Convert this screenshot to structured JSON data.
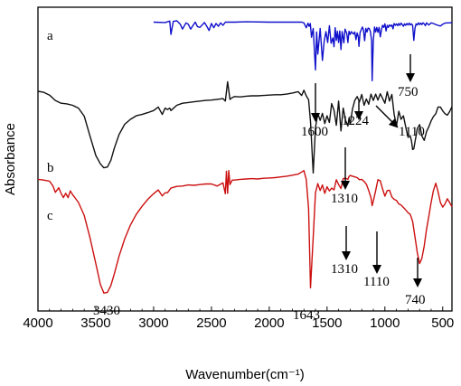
{
  "chart_data": {
    "type": "line",
    "xlabel": "Wavenumber(cm⁻¹)",
    "ylabel": "Absorbance",
    "xlim": [
      4000,
      420
    ],
    "x_ticks": [
      4000,
      3500,
      3000,
      2500,
      2000,
      1500,
      1000,
      500
    ],
    "grid": false,
    "series": [
      {
        "name": "a",
        "color": "#1010cc",
        "x": [
          3000,
          2900,
          2860,
          2850,
          2830,
          2800,
          2770,
          2750,
          2720,
          2700,
          2680,
          2660,
          2640,
          2620,
          2600,
          2560,
          2540,
          2520,
          2500,
          2480,
          2460,
          2440,
          2420,
          2400,
          2380,
          2300,
          2200,
          2000,
          1800,
          1720,
          1700,
          1680,
          1665,
          1655,
          1645,
          1635,
          1620,
          1600,
          1590,
          1580,
          1560,
          1540,
          1525,
          1510,
          1495,
          1480,
          1465,
          1450,
          1440,
          1430,
          1420,
          1410,
          1400,
          1390,
          1380,
          1370,
          1355,
          1345,
          1330,
          1320,
          1310,
          1300,
          1290,
          1280,
          1270,
          1260,
          1250,
          1240,
          1230,
          1224,
          1215,
          1205,
          1195,
          1185,
          1175,
          1165,
          1155,
          1145,
          1135,
          1125,
          1115,
          1110,
          1100,
          1090,
          1080,
          1070,
          1060,
          1050,
          1040,
          1030,
          1020,
          1010,
          1000,
          990,
          980,
          970,
          960,
          950,
          940,
          930,
          920,
          910,
          900,
          890,
          880,
          870,
          860,
          850,
          840,
          830,
          820,
          810,
          800,
          790,
          780,
          770,
          760,
          750,
          740,
          730,
          720,
          710,
          700,
          690,
          680,
          670,
          660,
          650,
          640,
          630,
          620,
          600,
          580,
          560,
          540,
          520,
          500,
          480,
          460,
          440,
          420
        ],
        "y": [
          97.3,
          97.2,
          97.6,
          93.8,
          97.5,
          97.7,
          96.7,
          95.3,
          97.1,
          96.7,
          95.3,
          96.3,
          97.3,
          96.0,
          95.8,
          97.2,
          96.1,
          94.9,
          96.9,
          95.7,
          96.9,
          96.1,
          97.1,
          96.4,
          97.3,
          97.3,
          97.4,
          97.3,
          97.3,
          97.3,
          97.1,
          95.7,
          97.0,
          96.1,
          96.9,
          93.0,
          95.5,
          83.7,
          94.5,
          88.2,
          95.5,
          86.4,
          91.8,
          94.6,
          91.5,
          96.3,
          91.3,
          92.8,
          90.3,
          95.7,
          92.1,
          94.7,
          91.5,
          94.8,
          89.5,
          94.6,
          91.4,
          95.3,
          94.1,
          91.5,
          94.7,
          93.8,
          94.6,
          94.2,
          93.9,
          94.5,
          92.3,
          94.2,
          93.1,
          90.4,
          94.3,
          95.1,
          95.9,
          95.1,
          92.0,
          95.5,
          94.5,
          95.6,
          95.5,
          94.6,
          92.0,
          80.6,
          92.1,
          95.9,
          94.5,
          95.8,
          94.4,
          95.8,
          93.1,
          95.1,
          96.4,
          95.8,
          96.8,
          94.8,
          96.4,
          95.8,
          96.5,
          96.1,
          96.5,
          95.4,
          96.9,
          96.4,
          96.8,
          96.3,
          96.9,
          96.4,
          97.0,
          96.6,
          96.1,
          96.8,
          96.4,
          96.9,
          96.5,
          97.0,
          96.5,
          96.8,
          96.4,
          92.1,
          95.6,
          96.8,
          96.5,
          97.1,
          96.6,
          97.0,
          96.6,
          97.1,
          96.8,
          96.3,
          97.1,
          96.8,
          96.5,
          97.1,
          96.9,
          96.6,
          96.4,
          96.2,
          96.7,
          97.0,
          97.1,
          97.1,
          97.2
        ]
      },
      {
        "name": "b",
        "color": "#111111",
        "x": [
          4000,
          3950,
          3900,
          3850,
          3800,
          3750,
          3700,
          3650,
          3600,
          3550,
          3500,
          3460,
          3430,
          3400,
          3370,
          3340,
          3300,
          3250,
          3200,
          3150,
          3100,
          3050,
          3000,
          2960,
          2925,
          2900,
          2880,
          2860,
          2850,
          2800,
          2750,
          2700,
          2650,
          2600,
          2550,
          2500,
          2450,
          2400,
          2380,
          2360,
          2340,
          2320,
          2300,
          2250,
          2200,
          2150,
          2100,
          2050,
          2000,
          1950,
          1900,
          1850,
          1800,
          1750,
          1720,
          1700,
          1680,
          1660,
          1643,
          1620,
          1600,
          1580,
          1560,
          1540,
          1520,
          1500,
          1480,
          1460,
          1440,
          1420,
          1400,
          1380,
          1360,
          1340,
          1320,
          1310,
          1300,
          1280,
          1260,
          1240,
          1220,
          1200,
          1180,
          1160,
          1140,
          1120,
          1100,
          1080,
          1060,
          1040,
          1020,
          1000,
          980,
          960,
          940,
          920,
          900,
          880,
          860,
          840,
          820,
          800,
          780,
          770,
          760,
          750,
          740,
          730,
          720,
          700,
          680,
          660,
          640,
          620,
          600,
          580,
          560,
          540,
          520,
          500,
          480,
          460,
          440,
          420
        ],
        "y": [
          77.6,
          77.3,
          76.5,
          75.0,
          74.2,
          74.0,
          73.6,
          72.8,
          70.5,
          64.8,
          59.3,
          56.9,
          55.8,
          56.0,
          57.9,
          61.3,
          65.2,
          68.2,
          69.6,
          70.6,
          71.0,
          71.5,
          72.1,
          73.1,
          71.0,
          72.8,
          72.4,
          72.8,
          72.1,
          73.6,
          74.2,
          74.4,
          74.6,
          74.8,
          75.0,
          75.1,
          75.3,
          75.5,
          74.8,
          80.3,
          75.3,
          75.8,
          76.1,
          76.0,
          76.2,
          76.3,
          76.3,
          76.4,
          76.5,
          76.6,
          76.6,
          76.8,
          77.1,
          77.5,
          76.4,
          77.9,
          76.3,
          75.2,
          69.0,
          54.3,
          67.2,
          71.3,
          69.3,
          71.3,
          68.4,
          70.6,
          68.7,
          74.1,
          72.2,
          67.9,
          74.8,
          66.3,
          72.8,
          69.3,
          67.7,
          70.0,
          68.3,
          72.6,
          75.0,
          76.1,
          74.6,
          76.7,
          73.6,
          75.4,
          73.9,
          76.8,
          75.0,
          76.8,
          75.1,
          76.9,
          75.6,
          74.2,
          77.5,
          74.8,
          76.7,
          71.1,
          67.7,
          71.9,
          69.6,
          70.6,
          67.5,
          64.5,
          64.8,
          63.5,
          61.0,
          61.2,
          63.2,
          64.9,
          66.9,
          68.1,
          64.9,
          63.6,
          66.1,
          67.5,
          69.2,
          70.4,
          71.2,
          73.1,
          73.1,
          72.0,
          71.2,
          70.8,
          71.8,
          73.2
        ]
      },
      {
        "name": "c",
        "color": "#cc1010",
        "x": [
          4000,
          3950,
          3900,
          3870,
          3850,
          3820,
          3800,
          3780,
          3760,
          3740,
          3720,
          3700,
          3680,
          3650,
          3600,
          3550,
          3500,
          3460,
          3430,
          3400,
          3370,
          3340,
          3300,
          3250,
          3200,
          3150,
          3100,
          3050,
          3000,
          2960,
          2925,
          2900,
          2880,
          2850,
          2800,
          2750,
          2700,
          2650,
          2600,
          2550,
          2500,
          2450,
          2400,
          2380,
          2370,
          2360,
          2350,
          2340,
          2320,
          2300,
          2250,
          2200,
          2150,
          2100,
          2050,
          2000,
          1950,
          1900,
          1850,
          1800,
          1750,
          1720,
          1700,
          1680,
          1660,
          1643,
          1620,
          1600,
          1580,
          1560,
          1540,
          1520,
          1500,
          1480,
          1460,
          1440,
          1420,
          1400,
          1380,
          1360,
          1340,
          1320,
          1310,
          1300,
          1280,
          1260,
          1240,
          1220,
          1200,
          1180,
          1160,
          1140,
          1120,
          1110,
          1100,
          1080,
          1060,
          1040,
          1020,
          1000,
          980,
          960,
          940,
          920,
          900,
          880,
          860,
          840,
          820,
          800,
          780,
          760,
          740,
          720,
          700,
          680,
          660,
          640,
          620,
          600,
          580,
          560,
          540,
          520,
          500,
          480,
          460,
          440,
          420
        ],
        "y": [
          52.5,
          52.3,
          52.0,
          50.6,
          48.8,
          50.1,
          48.5,
          47.3,
          48.5,
          47.3,
          49.2,
          48.1,
          47.3,
          45.9,
          42.2,
          35.8,
          28.5,
          22.5,
          20.1,
          20.3,
          22.2,
          25.5,
          30.5,
          35.5,
          39.5,
          42.5,
          44.8,
          46.8,
          48.4,
          49.5,
          47.8,
          48.7,
          48.7,
          50.0,
          50.5,
          50.6,
          50.9,
          50.8,
          51.0,
          51.2,
          51.2,
          50.6,
          51.5,
          48.4,
          54.8,
          48.5,
          55.0,
          51.0,
          52.3,
          52.3,
          52.5,
          52.6,
          52.7,
          52.6,
          52.8,
          52.9,
          53.0,
          53.2,
          53.4,
          53.7,
          54.0,
          54.6,
          55.0,
          52.5,
          44.1,
          21.6,
          36.0,
          48.7,
          51.3,
          49.3,
          50.9,
          48.5,
          50.4,
          49.2,
          50.0,
          49.5,
          52.4,
          51.0,
          49.9,
          52.7,
          52.8,
          52.5,
          53.3,
          53.6,
          53.4,
          53.2,
          53.0,
          52.4,
          52.5,
          51.9,
          51.1,
          49.3,
          47.3,
          45.0,
          46.3,
          49.3,
          52.4,
          52.1,
          49.8,
          47.7,
          49.3,
          49.4,
          47.5,
          46.8,
          46.5,
          45.5,
          45.2,
          44.5,
          43.8,
          43.0,
          42.5,
          40.5,
          36.1,
          31.7,
          28.5,
          30.0,
          33.5,
          38.3,
          42.0,
          46.0,
          49.3,
          51.4,
          49.0,
          45.9,
          44.6,
          45.5,
          47.0,
          45.9,
          44.7
        ]
      }
    ],
    "annotations": [
      {
        "text": "750",
        "target": [
          750,
          92.1
        ],
        "arrow": "down"
      },
      {
        "text": "1600",
        "target": [
          1600,
          83.7
        ],
        "arrow": "down"
      },
      {
        "text": "1224",
        "target": [
          1224,
          90.4
        ],
        "arrow": "down"
      },
      {
        "text": "1110",
        "target": [
          1110,
          80.6
        ],
        "arrow": "diagonal"
      },
      {
        "text": "1310",
        "target": [
          1310,
          67.7
        ],
        "arrow": "down"
      },
      {
        "text": "1310",
        "target": [
          1310,
          49.9
        ],
        "arrow": "down"
      },
      {
        "text": "1110",
        "target": [
          1110,
          45.0
        ],
        "arrow": "down"
      },
      {
        "text": "740",
        "target": [
          740,
          31.7
        ],
        "arrow": "down"
      },
      {
        "text": "3430",
        "target": [
          3430,
          20.1
        ],
        "arrow": "none"
      },
      {
        "text": "1643",
        "target": [
          1643,
          21.6
        ],
        "arrow": "none"
      }
    ]
  }
}
